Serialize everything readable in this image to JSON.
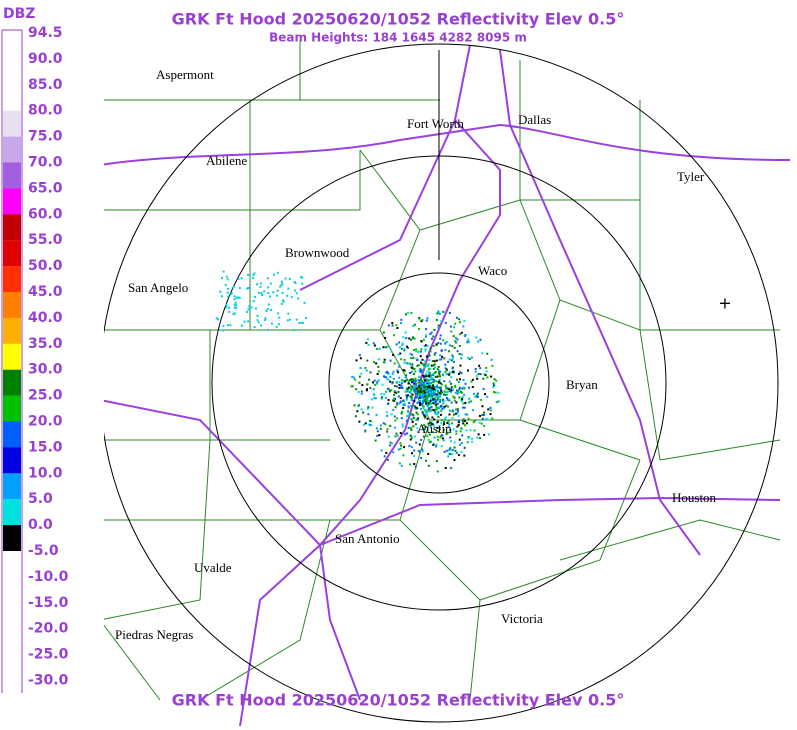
{
  "header": {
    "title": "GRK Ft Hood 20250620/1052 Reflectivity Elev 0.5°",
    "subtitle": "Beam Heights: 184 1645 4282 8095 m"
  },
  "footer": {
    "title": "GRK Ft Hood 20250620/1052 Reflectivity Elev 0.5°"
  },
  "legend": {
    "unit": "DBZ",
    "items": [
      {
        "label": "94.5",
        "color": "#ffffff"
      },
      {
        "label": "90.0",
        "color": "#ffffff"
      },
      {
        "label": "85.0",
        "color": "#ffffff"
      },
      {
        "label": "80.0",
        "color": "#e8e0f0"
      },
      {
        "label": "75.0",
        "color": "#c8a8e8"
      },
      {
        "label": "70.0",
        "color": "#a060e0"
      },
      {
        "label": "65.0",
        "color": "#ff00ff"
      },
      {
        "label": "60.0",
        "color": "#c00000"
      },
      {
        "label": "55.0",
        "color": "#e00000"
      },
      {
        "label": "50.0",
        "color": "#ff3000"
      },
      {
        "label": "45.0",
        "color": "#ff8000"
      },
      {
        "label": "40.0",
        "color": "#ffb000"
      },
      {
        "label": "35.0",
        "color": "#ffff00"
      },
      {
        "label": "30.0",
        "color": "#008000"
      },
      {
        "label": "25.0",
        "color": "#00c000"
      },
      {
        "label": "20.0",
        "color": "#0060ff"
      },
      {
        "label": "15.0",
        "color": "#0000e0"
      },
      {
        "label": "10.0",
        "color": "#00a0ff"
      },
      {
        "label": "5.0",
        "color": "#00e0e0"
      },
      {
        "label": "0.0",
        "color": "#000000"
      },
      {
        "label": "-5.0",
        "color": "#ffffff"
      },
      {
        "label": "-10.0",
        "color": "#ffffff"
      },
      {
        "label": "-15.0",
        "color": "#ffffff"
      },
      {
        "label": "-20.0",
        "color": "#ffffff"
      },
      {
        "label": "-25.0",
        "color": "#ffffff"
      },
      {
        "label": "-30.0",
        "color": "#ffffff"
      }
    ]
  },
  "cities": [
    "Aspermont",
    "Abilene",
    "Fort Worth",
    "Dallas",
    "Tyler",
    "Brownwood",
    "Waco",
    "San Angelo",
    "Bryan",
    "Austin",
    "Houston",
    "San Antonio",
    "Uvalde",
    "Victoria",
    "Piedras Negras"
  ]
}
